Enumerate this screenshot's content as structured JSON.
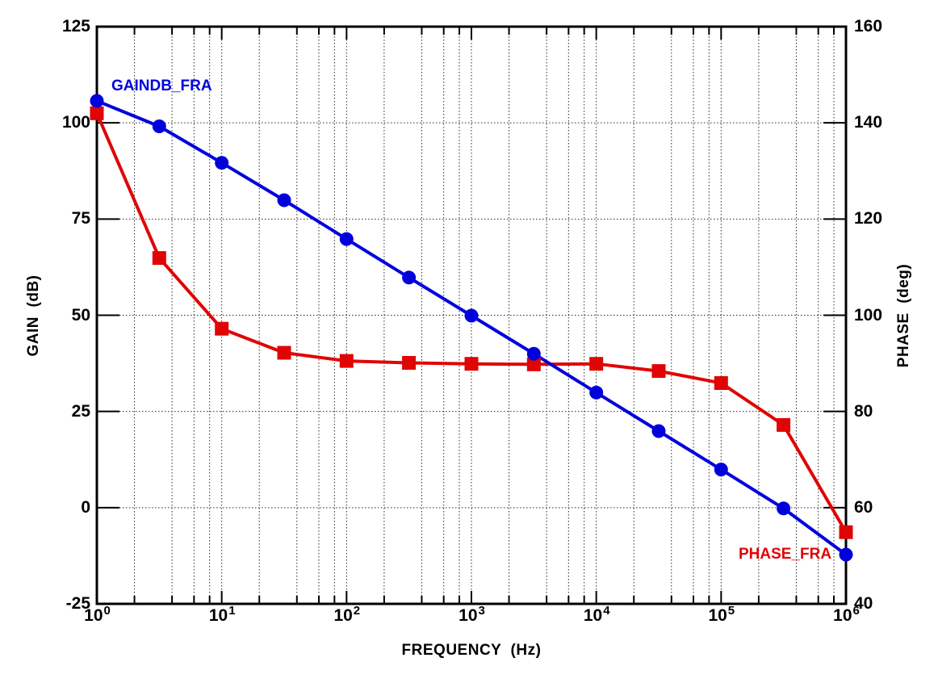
{
  "chart_data": {
    "type": "line",
    "title": "",
    "x_axis": {
      "label": "FREQUENCY  (Hz)",
      "scale": "log",
      "min_exponent": 0,
      "max_exponent": 6,
      "decade_label_base": "10",
      "decade_exponents": [
        0,
        1,
        2,
        3,
        4,
        5,
        6
      ],
      "minor_grid_multiples": [
        2,
        4,
        6,
        8
      ]
    },
    "y_left": {
      "label": "GAIN  (dB)",
      "min": -25,
      "max": 125,
      "ticks": [
        125,
        100,
        75,
        50,
        25,
        0,
        -25
      ]
    },
    "y_right": {
      "label": "PHASE  (deg)",
      "min": 40,
      "max": 160,
      "ticks": [
        160,
        140,
        120,
        100,
        80,
        60,
        40
      ]
    },
    "grid": true,
    "legend_position": "inline-labels",
    "frequencies_hz": [
      1,
      3.16,
      10,
      31.6,
      100,
      316,
      1000,
      3160,
      10000,
      31600,
      100000,
      316000,
      1000000
    ],
    "series": [
      {
        "name": "GAINDB_FRA",
        "axis": "left",
        "unit": "dB",
        "color": "#0000DC",
        "marker": "circle",
        "values": [
          105.7,
          99.1,
          89.6,
          79.9,
          69.8,
          59.8,
          49.9,
          40.0,
          29.9,
          19.9,
          9.9,
          -0.2,
          -12.2
        ]
      },
      {
        "name": "PHASE_FRA",
        "axis": "right",
        "unit": "deg",
        "color": "#E00505",
        "marker": "square",
        "values": [
          142.0,
          111.9,
          97.2,
          92.2,
          90.5,
          90.1,
          89.9,
          89.8,
          89.9,
          88.4,
          85.9,
          77.2,
          54.9
        ]
      }
    ]
  },
  "colors": {
    "axis": "#000000",
    "grid": "#2B2B2B",
    "background": "#FFFFFF"
  }
}
